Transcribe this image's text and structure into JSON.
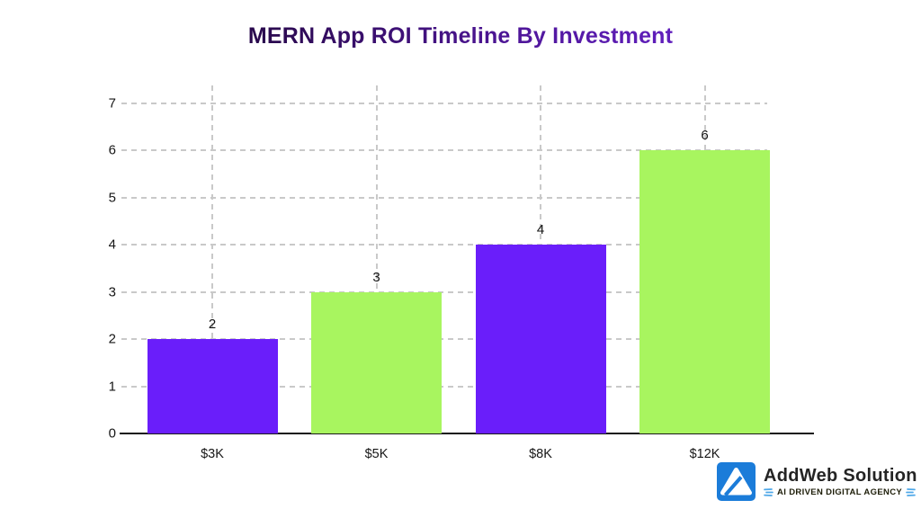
{
  "title": {
    "text": "MERN App ROI Timeline By Investment"
  },
  "chart_data": {
    "type": "bar",
    "title": "MERN App ROI Timeline By Investment",
    "categories": [
      "$3K",
      "$5K",
      "$8K",
      "$12K"
    ],
    "values": [
      2,
      3,
      4,
      6
    ],
    "value_labels": [
      "2",
      "3",
      "4",
      "6"
    ],
    "bar_colors": [
      "#6a1efa",
      "#a8f55f",
      "#6a1efa",
      "#a8f55f"
    ],
    "xlabel": "",
    "ylabel": "",
    "ylim": [
      0,
      7
    ],
    "yticks": [
      0,
      1,
      2,
      3,
      4,
      5,
      6,
      7
    ],
    "grid": "dashed horizontal gridlines at each y tick, dashed vertical gridlines at each category center",
    "legend": "none"
  },
  "branding": {
    "name": "AddWeb Solution",
    "tagline": "AI DRIVEN DIGITAL AGENCY",
    "logo_letter": "A",
    "logo_color": "#1b7cd9",
    "accent_blue": "#4fa8e8"
  },
  "colors": {
    "background": "#ffffff",
    "bar_purple": "#6a1efa",
    "bar_green": "#a8f55f",
    "gridline": "#c9c9c9",
    "axis": "#191919",
    "title_gradient_start": "#130120",
    "title_gradient_end": "#7b2bf2"
  }
}
